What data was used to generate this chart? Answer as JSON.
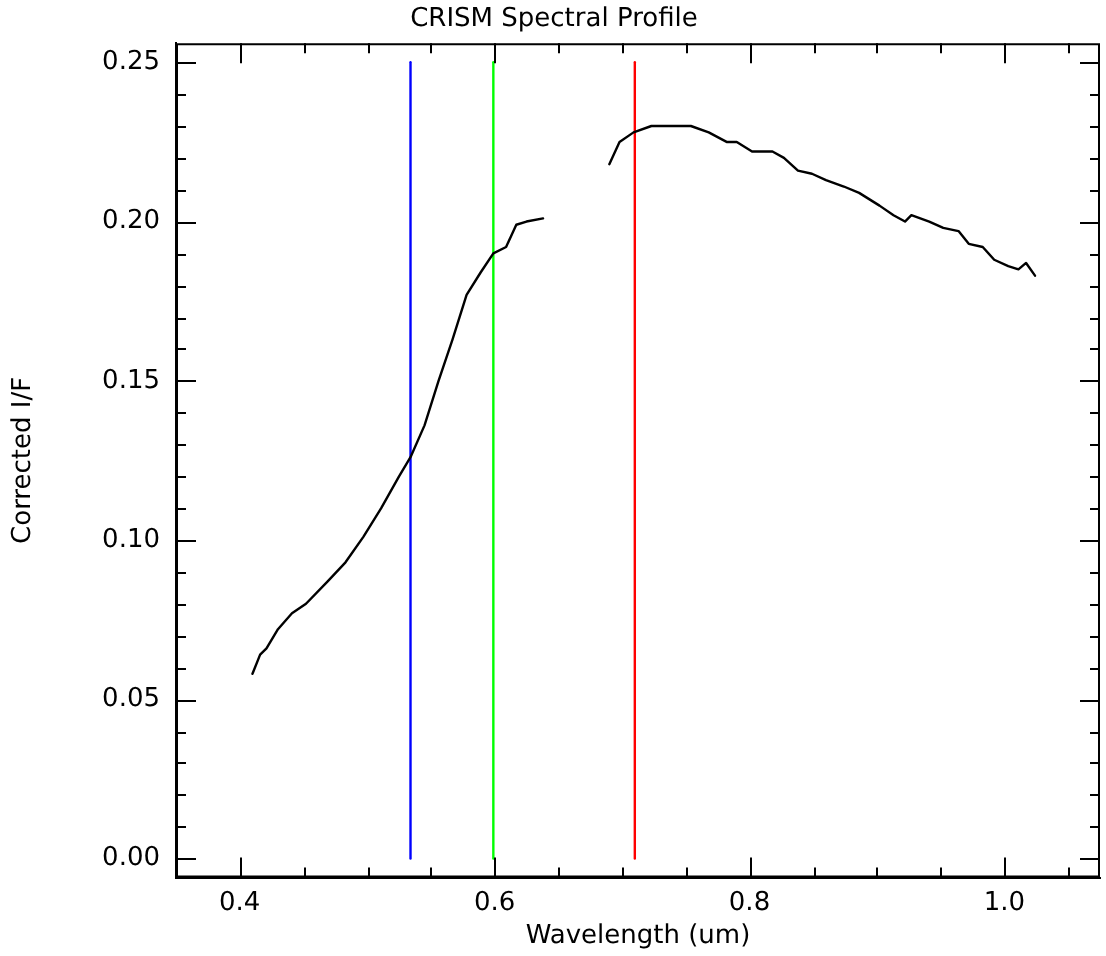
{
  "chart_data": {
    "type": "line",
    "title": "CRISM Spectral Profile",
    "xlabel": "Wavelength (um)",
    "ylabel": "Corrected I/F",
    "xlim": [
      0.35,
      1.075
    ],
    "xticks": [
      {
        "value": 0.4,
        "label": "0.4"
      },
      {
        "value": 0.45,
        "label": null
      },
      {
        "value": 0.5,
        "label": null
      },
      {
        "value": 0.55,
        "label": null
      },
      {
        "value": 0.6,
        "label": "0.6"
      },
      {
        "value": 0.65,
        "label": null
      },
      {
        "value": 0.7,
        "label": null
      },
      {
        "value": 0.75,
        "label": null
      },
      {
        "value": 0.8,
        "label": "0.8"
      },
      {
        "value": 0.85,
        "label": null
      },
      {
        "value": 0.9,
        "label": null
      },
      {
        "value": 0.95,
        "label": null
      },
      {
        "value": 1,
        "label": "1.0"
      },
      {
        "value": 1.05,
        "label": null
      }
    ],
    "ylim": [
      -0.006,
      0.256
    ],
    "yticks": [
      {
        "value": 0,
        "label": "0.00"
      },
      {
        "value": 0.01,
        "label": null
      },
      {
        "value": 0.02,
        "label": null
      },
      {
        "value": 0.03,
        "label": null
      },
      {
        "value": 0.04,
        "label": null
      },
      {
        "value": 0.05,
        "label": "0.05"
      },
      {
        "value": 0.06,
        "label": null
      },
      {
        "value": 0.07,
        "label": null
      },
      {
        "value": 0.08,
        "label": null
      },
      {
        "value": 0.09,
        "label": null
      },
      {
        "value": 0.1,
        "label": "0.10"
      },
      {
        "value": 0.11,
        "label": null
      },
      {
        "value": 0.12,
        "label": null
      },
      {
        "value": 0.13,
        "label": null
      },
      {
        "value": 0.14,
        "label": null
      },
      {
        "value": 0.15,
        "label": "0.15"
      },
      {
        "value": 0.16,
        "label": null
      },
      {
        "value": 0.17,
        "label": null
      },
      {
        "value": 0.18,
        "label": null
      },
      {
        "value": 0.19,
        "label": null
      },
      {
        "value": 0.2,
        "label": "0.20"
      },
      {
        "value": 0.21,
        "label": null
      },
      {
        "value": 0.22,
        "label": null
      },
      {
        "value": 0.23,
        "label": null
      },
      {
        "value": 0.24,
        "label": null
      },
      {
        "value": 0.25,
        "label": "0.25"
      }
    ],
    "grid": false,
    "legend": false,
    "marker": "none",
    "line_style": "solid",
    "series": [
      {
        "color": "#000000",
        "x": [
          0.41,
          0.416,
          0.421,
          0.43,
          0.441,
          0.452,
          0.469,
          0.483,
          0.497,
          0.511,
          0.525,
          0.534,
          0.545,
          0.556,
          0.567,
          0.578,
          0.589,
          0.599,
          0.609,
          0.617,
          0.625,
          0.638
        ],
        "values": [
          0.058,
          0.064,
          0.066,
          0.072,
          0.077,
          0.08,
          0.087,
          0.093,
          0.101,
          0.11,
          0.12,
          0.126,
          0.136,
          0.15,
          0.163,
          0.177,
          0.184,
          0.19,
          0.192,
          0.199,
          0.2,
          0.201
        ]
      },
      {
        "color": "#000000",
        "x": [
          0.69,
          0.698,
          0.709,
          0.723,
          0.74,
          0.754,
          0.768,
          0.782,
          0.79,
          0.802,
          0.818,
          0.827,
          0.838,
          0.849,
          0.86,
          0.874,
          0.886,
          0.902,
          0.913,
          0.922,
          0.927,
          0.941,
          0.952,
          0.964,
          0.972,
          0.983,
          0.992,
          1.003,
          1.011,
          1.017,
          1.024
        ],
        "values": [
          0.218,
          0.225,
          0.228,
          0.23,
          0.23,
          0.23,
          0.228,
          0.225,
          0.225,
          0.222,
          0.222,
          0.22,
          0.216,
          0.215,
          0.213,
          0.211,
          0.209,
          0.205,
          0.202,
          0.2,
          0.202,
          0.2,
          0.198,
          0.197,
          0.193,
          0.192,
          0.188,
          0.186,
          0.185,
          0.187,
          0.183
        ]
      },
      {
        "color": "#0000ff",
        "x": [
          0.534,
          0.534
        ],
        "values": [
          0,
          0.25
        ]
      },
      {
        "color": "#00ff00",
        "x": [
          0.599,
          0.599
        ],
        "values": [
          0,
          0.25
        ]
      },
      {
        "color": "#ff0000",
        "x": [
          0.71,
          0.71
        ],
        "values": [
          0,
          0.25
        ]
      }
    ]
  }
}
